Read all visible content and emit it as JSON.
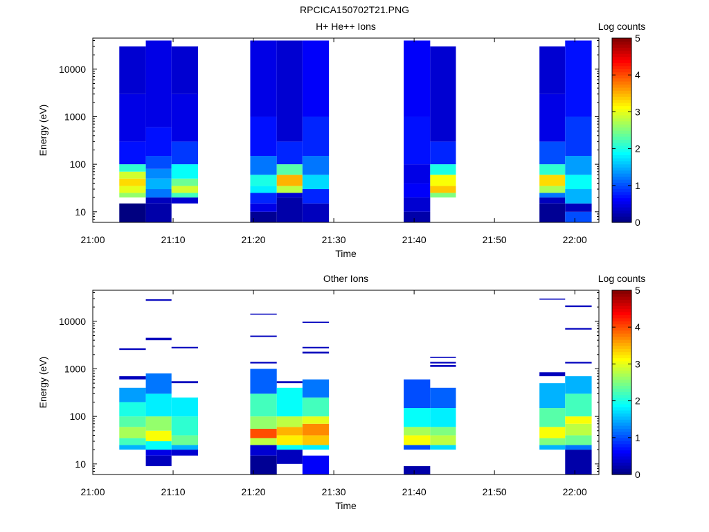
{
  "page": {
    "title": "RPCICA150702T21.PNG"
  },
  "colormap": [
    "#000080",
    "#0000ff",
    "#0080ff",
    "#00ffff",
    "#80ff80",
    "#ffff00",
    "#ff8000",
    "#ff0000",
    "#800000"
  ],
  "chart_data": [
    {
      "type": "heatmap",
      "title": "H+ He++ Ions",
      "xlabel": "Time",
      "ylabel": "Energy (eV)",
      "colorbar_label": "Log counts",
      "colorbar_ticks": [
        "0",
        "1",
        "2",
        "3",
        "4",
        "5"
      ],
      "x_ticks": [
        "21:00",
        "21:10",
        "21:20",
        "21:30",
        "21:40",
        "21:50",
        "22:00"
      ],
      "xlim": [
        "21:00",
        "22:03"
      ],
      "y_scale": "log",
      "y_ticks": [
        "10",
        "100",
        "1000",
        "10000"
      ],
      "ylim": [
        6,
        45000
      ],
      "clim": [
        0,
        5
      ],
      "columns": [
        {
          "t0": "21:03.3",
          "t1": "21:06.6",
          "bands": [
            [
              6,
              15,
              0.0
            ],
            [
              15,
              20,
              null
            ],
            [
              20,
              25,
              2.6
            ],
            [
              25,
              35,
              3.0
            ],
            [
              35,
              50,
              3.3
            ],
            [
              50,
              70,
              2.9
            ],
            [
              70,
              100,
              2.1
            ],
            [
              100,
              300,
              0.7
            ],
            [
              300,
              3000,
              0.5
            ],
            [
              3000,
              30000,
              0.4
            ]
          ]
        },
        {
          "t0": "21:06.6",
          "t1": "21:09.8",
          "bands": [
            [
              6,
              15,
              0.2
            ],
            [
              15,
              20,
              0.3
            ],
            [
              20,
              30,
              1.2
            ],
            [
              30,
              50,
              1.5
            ],
            [
              50,
              80,
              1.3
            ],
            [
              80,
              150,
              1.0
            ],
            [
              150,
              600,
              0.7
            ],
            [
              600,
              40000,
              0.5
            ]
          ]
        },
        {
          "t0": "21:09.8",
          "t1": "21:13.1",
          "bands": [
            [
              15,
              20,
              0.4
            ],
            [
              20,
              25,
              2.2
            ],
            [
              25,
              35,
              2.9
            ],
            [
              35,
              50,
              2.4
            ],
            [
              50,
              100,
              1.9
            ],
            [
              100,
              300,
              0.9
            ],
            [
              300,
              3000,
              0.5
            ],
            [
              3000,
              30000,
              0.4
            ]
          ]
        },
        {
          "t0": "21:19.6",
          "t1": "21:22.9",
          "bands": [
            [
              6,
              10,
              0.1
            ],
            [
              10,
              15,
              0.5
            ],
            [
              15,
              25,
              0.8
            ],
            [
              25,
              35,
              1.8
            ],
            [
              35,
              60,
              2.0
            ],
            [
              60,
              150,
              1.2
            ],
            [
              150,
              1000,
              0.7
            ],
            [
              1000,
              40000,
              0.5
            ]
          ]
        },
        {
          "t0": "21:22.9",
          "t1": "21:26.1",
          "bands": [
            [
              6,
              20,
              0.2
            ],
            [
              20,
              25,
              0.4
            ],
            [
              25,
              35,
              2.8
            ],
            [
              35,
              60,
              3.5
            ],
            [
              60,
              100,
              2.3
            ],
            [
              100,
              300,
              0.8
            ],
            [
              300,
              40000,
              0.4
            ]
          ]
        },
        {
          "t0": "21:26.1",
          "t1": "21:29.4",
          "bands": [
            [
              6,
              15,
              0.3
            ],
            [
              15,
              30,
              0.8
            ],
            [
              30,
              60,
              1.7
            ],
            [
              60,
              150,
              1.2
            ],
            [
              150,
              1000,
              0.8
            ],
            [
              1000,
              40000,
              0.6
            ]
          ]
        },
        {
          "t0": "21:38.7",
          "t1": "21:42.0",
          "bands": [
            [
              6,
              10,
              0.2
            ],
            [
              10,
              20,
              0.4
            ],
            [
              20,
              40,
              0.6
            ],
            [
              40,
              100,
              0.5
            ],
            [
              100,
              1000,
              0.7
            ],
            [
              1000,
              40000,
              0.6
            ]
          ]
        },
        {
          "t0": "21:42.0",
          "t1": "21:45.2",
          "bands": [
            [
              20,
              25,
              2.5
            ],
            [
              25,
              35,
              3.4
            ],
            [
              35,
              60,
              3.1
            ],
            [
              60,
              100,
              2.0
            ],
            [
              100,
              300,
              0.8
            ],
            [
              300,
              30000,
              0.4
            ]
          ]
        },
        {
          "t0": "21:55.6",
          "t1": "21:58.8",
          "bands": [
            [
              6,
              15,
              0.1
            ],
            [
              15,
              20,
              0.3
            ],
            [
              20,
              25,
              1.2
            ],
            [
              25,
              35,
              2.7
            ],
            [
              35,
              60,
              3.3
            ],
            [
              60,
              100,
              2.1
            ],
            [
              100,
              300,
              1.0
            ],
            [
              300,
              3000,
              0.5
            ],
            [
              3000,
              30000,
              0.4
            ]
          ]
        },
        {
          "t0": "21:58.8",
          "t1": "22:02.1",
          "bands": [
            [
              6,
              10,
              1.0
            ],
            [
              10,
              15,
              0.3
            ],
            [
              15,
              30,
              1.5
            ],
            [
              30,
              60,
              1.9
            ],
            [
              60,
              150,
              1.4
            ],
            [
              150,
              1000,
              0.9
            ],
            [
              1000,
              40000,
              0.7
            ]
          ]
        }
      ]
    },
    {
      "type": "heatmap",
      "title": "Other Ions",
      "xlabel": "Time",
      "ylabel": "Energy (eV)",
      "colorbar_label": "Log counts",
      "colorbar_ticks": [
        "0",
        "1",
        "2",
        "3",
        "4",
        "5"
      ],
      "x_ticks": [
        "21:00",
        "21:10",
        "21:20",
        "21:30",
        "21:40",
        "21:50",
        "22:00"
      ],
      "xlim": [
        "21:00",
        "22:03"
      ],
      "y_scale": "log",
      "y_ticks": [
        "10",
        "100",
        "1000",
        "10000"
      ],
      "ylim": [
        6,
        45000
      ],
      "clim": [
        0,
        5
      ],
      "columns": [
        {
          "t0": "21:03.3",
          "t1": "21:06.6",
          "bands": [
            [
              20,
              25,
              1.5
            ],
            [
              25,
              35,
              2.2
            ],
            [
              35,
              60,
              2.7
            ],
            [
              60,
              100,
              2.3
            ],
            [
              100,
              200,
              2.0
            ],
            [
              200,
              400,
              1.4
            ],
            [
              600,
              700,
              0.3
            ],
            [
              2500,
              2700,
              0.3
            ]
          ]
        },
        {
          "t0": "21:06.6",
          "t1": "21:09.8",
          "bands": [
            [
              9,
              15,
              0.3
            ],
            [
              15,
              20,
              0.5
            ],
            [
              20,
              30,
              1.9
            ],
            [
              30,
              50,
              3.1
            ],
            [
              50,
              100,
              2.6
            ],
            [
              100,
              300,
              1.8
            ],
            [
              300,
              800,
              1.2
            ],
            [
              4000,
              4500,
              0.3
            ],
            [
              27000,
              29000,
              0.3
            ]
          ]
        },
        {
          "t0": "21:09.8",
          "t1": "21:13.1",
          "bands": [
            [
              15,
              20,
              0.4
            ],
            [
              20,
              25,
              1.5
            ],
            [
              25,
              40,
              2.4
            ],
            [
              40,
              100,
              2.1
            ],
            [
              100,
              250,
              1.8
            ],
            [
              500,
              550,
              0.3
            ],
            [
              2700,
              2900,
              0.3
            ]
          ]
        },
        {
          "t0": "21:19.6",
          "t1": "21:22.9",
          "bands": [
            [
              6,
              15,
              0.1
            ],
            [
              15,
              25,
              0.4
            ],
            [
              25,
              35,
              2.8
            ],
            [
              35,
              55,
              4.0
            ],
            [
              55,
              100,
              2.6
            ],
            [
              100,
              300,
              2.2
            ],
            [
              300,
              1000,
              1.1
            ],
            [
              1300,
              1400,
              0.3
            ],
            [
              4700,
              5000,
              0.3
            ],
            [
              14000,
              14500,
              0.3
            ]
          ]
        },
        {
          "t0": "21:22.9",
          "t1": "21:26.1",
          "bands": [
            [
              10,
              20,
              0.3
            ],
            [
              20,
              25,
              1.9
            ],
            [
              25,
              40,
              3.2
            ],
            [
              40,
              60,
              3.5
            ],
            [
              60,
              100,
              2.8
            ],
            [
              100,
              400,
              1.9
            ],
            [
              500,
              550,
              0.3
            ]
          ]
        },
        {
          "t0": "21:26.1",
          "t1": "21:29.4",
          "bands": [
            [
              6,
              15,
              0.6
            ],
            [
              15,
              20,
              null
            ],
            [
              20,
              25,
              1.8
            ],
            [
              25,
              40,
              3.4
            ],
            [
              40,
              70,
              3.7
            ],
            [
              70,
              100,
              3.0
            ],
            [
              100,
              250,
              2.2
            ],
            [
              250,
              600,
              1.2
            ],
            [
              2100,
              2300,
              0.3
            ],
            [
              2700,
              2900,
              0.3
            ],
            [
              9300,
              9800,
              0.3
            ]
          ]
        },
        {
          "t0": "21:38.7",
          "t1": "21:42.0",
          "bands": [
            [
              6,
              9,
              0.2
            ],
            [
              20,
              25,
              1.0
            ],
            [
              25,
              40,
              3.1
            ],
            [
              40,
              60,
              2.7
            ],
            [
              60,
              150,
              1.9
            ],
            [
              150,
              600,
              1.0
            ]
          ]
        },
        {
          "t0": "21:42.0",
          "t1": "21:45.2",
          "bands": [
            [
              20,
              25,
              1.7
            ],
            [
              25,
              40,
              2.8
            ],
            [
              40,
              60,
              2.5
            ],
            [
              60,
              150,
              1.8
            ],
            [
              150,
              400,
              1.1
            ],
            [
              1100,
              1200,
              0.3
            ],
            [
              1300,
              1400,
              0.3
            ],
            [
              1700,
              1800,
              0.3
            ]
          ]
        },
        {
          "t0": "21:55.6",
          "t1": "21:58.8",
          "bands": [
            [
              20,
              25,
              1.5
            ],
            [
              25,
              35,
              2.5
            ],
            [
              35,
              60,
              3.1
            ],
            [
              60,
              150,
              2.3
            ],
            [
              150,
              500,
              1.5
            ],
            [
              700,
              850,
              0.3
            ],
            [
              29000,
              30000,
              0.3
            ]
          ]
        },
        {
          "t0": "21:58.8",
          "t1": "22:02.1",
          "bands": [
            [
              6,
              20,
              0.2
            ],
            [
              20,
              25,
              1.2
            ],
            [
              25,
              40,
              2.4
            ],
            [
              40,
              70,
              2.8
            ],
            [
              70,
              100,
              3.1
            ],
            [
              100,
              300,
              2.2
            ],
            [
              300,
              700,
              1.5
            ],
            [
              1300,
              1400,
              0.3
            ],
            [
              6700,
              7200,
              0.3
            ],
            [
              20000,
              21500,
              0.3
            ]
          ]
        }
      ]
    }
  ]
}
